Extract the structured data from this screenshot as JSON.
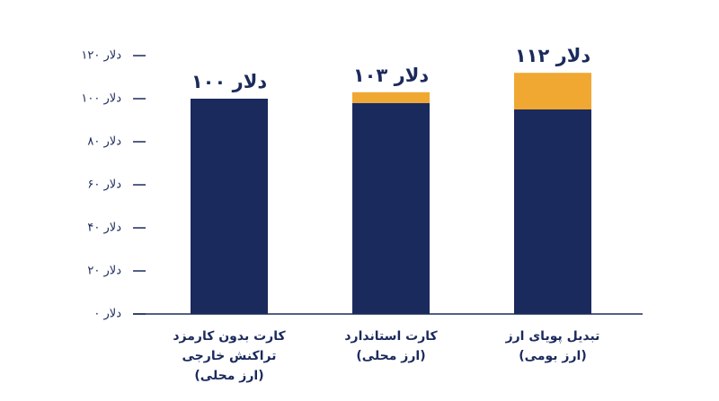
{
  "chart_data": {
    "type": "stacked_bar",
    "categories": [
      [
        "کارت بدون کارمزد",
        "تراکنش خارجی",
        "(ارز محلی)"
      ],
      [
        "کارت استاندارد",
        "(ارز محلی)"
      ],
      [
        "تبدیل پویای ارز",
        "(ارز بومی)"
      ]
    ],
    "series": [
      {
        "color": "#1b2a5c",
        "values": [
          100,
          98,
          95
        ]
      },
      {
        "color": "#f0a832",
        "values": [
          0,
          5,
          17
        ]
      }
    ],
    "totals": {
      "values": [
        100,
        103,
        112
      ],
      "value_labels": [
        "۱۰۰ دلار",
        "۱۰۳ دلار",
        "۱۱۲ دلار"
      ]
    },
    "ylim": [
      0,
      120
    ],
    "yticks": [
      {
        "value": 0,
        "label": "۰ دلار"
      },
      {
        "value": 20,
        "label": "۲۰ دلار"
      },
      {
        "value": 40,
        "label": "۴۰ دلار"
      },
      {
        "value": 60,
        "label": "۶۰ دلار"
      },
      {
        "value": 80,
        "label": "۸۰ دلار"
      },
      {
        "value": 100,
        "label": "۱۰۰ دلار"
      },
      {
        "value": 120,
        "label": "۱۲۰ دلار"
      }
    ],
    "grid": false
  }
}
